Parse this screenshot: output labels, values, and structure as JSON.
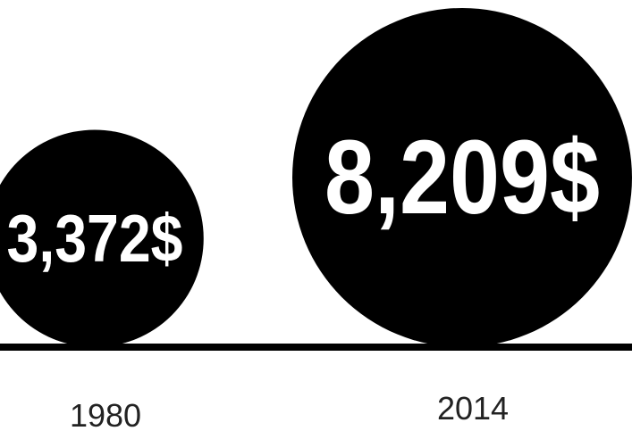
{
  "chart_data": {
    "type": "bubble",
    "categories": [
      "1980",
      "2014"
    ],
    "values": [
      3372,
      8209
    ],
    "value_labels": [
      "3,372$",
      "8,209$"
    ],
    "title": "",
    "xlabel": "",
    "ylabel": "",
    "legend": "none",
    "grid": false,
    "colors": {
      "bubble": "#000000",
      "bubble_text": "#ffffff",
      "baseline": "#000000",
      "year_text": "#222222"
    }
  }
}
